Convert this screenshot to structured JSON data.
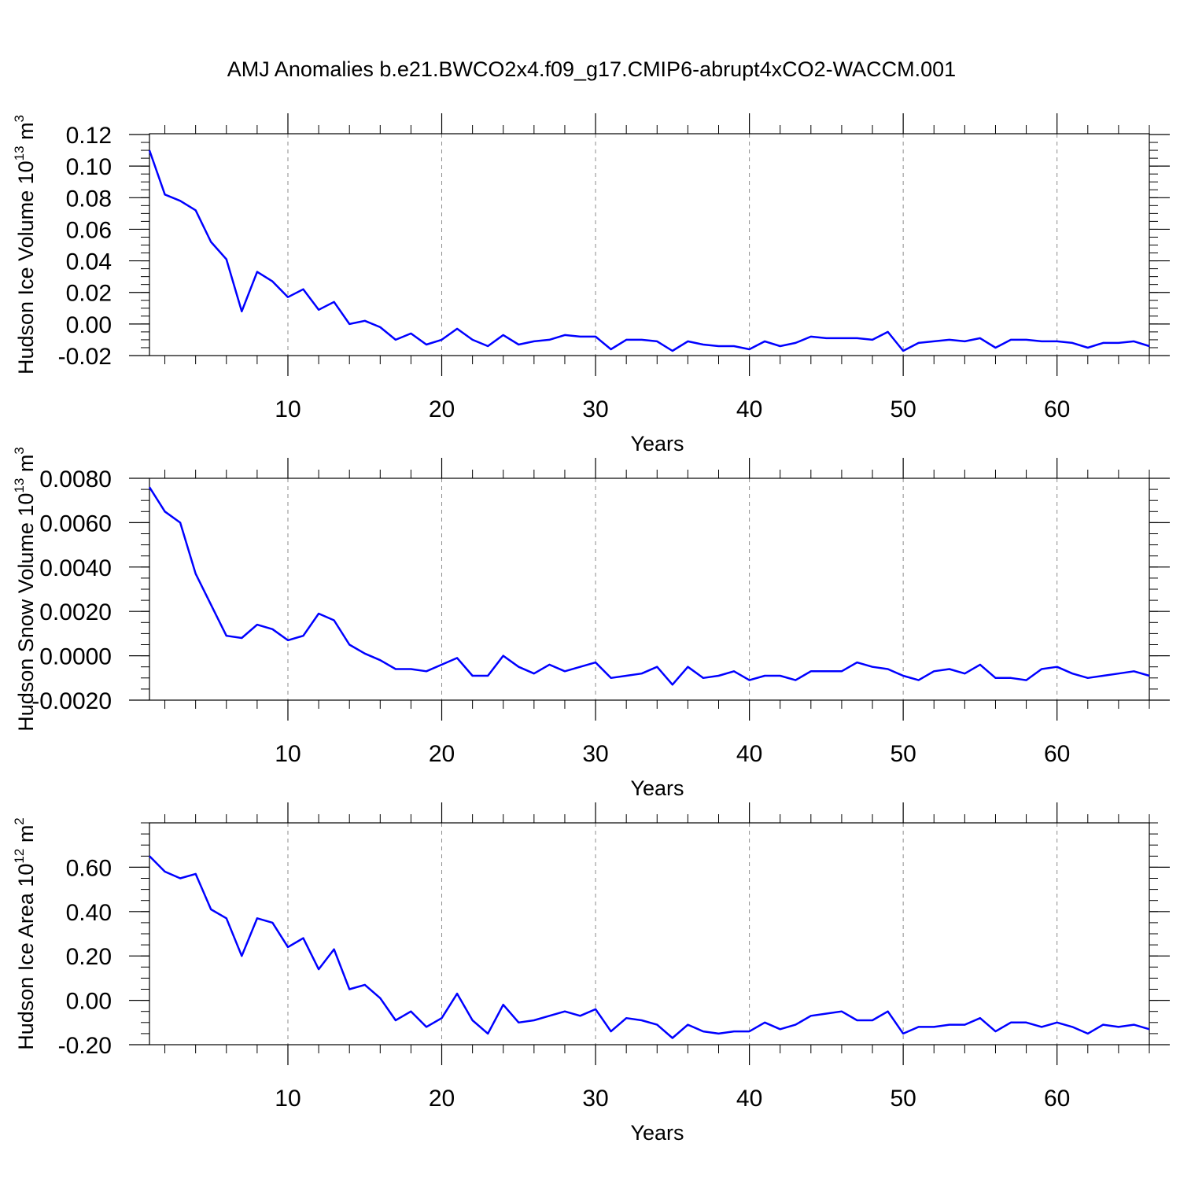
{
  "figure": {
    "title": "AMJ Anomalies b.e21.BWCO2x4.f09_g17.CMIP6-abrupt4xCO2-WACCM.001",
    "line_color": "#0000ff",
    "grid_color": "#8c8c8c"
  },
  "chart_data": [
    {
      "type": "line",
      "ylabel": "Hudson Ice Volume 10",
      "ylabel_exp": "13",
      "ylabel_unit": " m",
      "ylabel_unit_exp": "3",
      "xlabel": "Years",
      "xlim": [
        1,
        66
      ],
      "ylim": [
        -0.02,
        0.12
      ],
      "ymax_plot": 0.1205,
      "xticks": [
        10,
        20,
        30,
        40,
        50,
        60
      ],
      "xtick_labels": [
        "10",
        "20",
        "30",
        "40",
        "50",
        "60"
      ],
      "yticks": [
        -0.02,
        0.0,
        0.02,
        0.04,
        0.06,
        0.08,
        0.1,
        0.12
      ],
      "ytick_labels": [
        "-0.02",
        "0.00",
        "0.02",
        "0.04",
        "0.06",
        "0.08",
        "0.10",
        "0.12"
      ],
      "yminor_step": 0.005,
      "x": [
        1,
        2,
        3,
        4,
        5,
        6,
        7,
        8,
        9,
        10,
        11,
        12,
        13,
        14,
        15,
        16,
        17,
        18,
        19,
        20,
        21,
        22,
        23,
        24,
        25,
        26,
        27,
        28,
        29,
        30,
        31,
        32,
        33,
        34,
        35,
        36,
        37,
        38,
        39,
        40,
        41,
        42,
        43,
        44,
        45,
        46,
        47,
        48,
        49,
        50,
        51,
        52,
        53,
        54,
        55,
        56,
        57,
        58,
        59,
        60,
        61,
        62,
        63,
        64,
        65,
        66
      ],
      "values": [
        0.11,
        0.082,
        0.078,
        0.072,
        0.052,
        0.041,
        0.008,
        0.033,
        0.027,
        0.017,
        0.022,
        0.009,
        0.014,
        0.0,
        0.002,
        -0.002,
        -0.01,
        -0.006,
        -0.013,
        -0.01,
        -0.003,
        -0.01,
        -0.014,
        -0.007,
        -0.013,
        -0.011,
        -0.01,
        -0.007,
        -0.008,
        -0.008,
        -0.016,
        -0.01,
        -0.01,
        -0.011,
        -0.017,
        -0.011,
        -0.013,
        -0.014,
        -0.014,
        -0.016,
        -0.011,
        -0.014,
        -0.012,
        -0.008,
        -0.009,
        -0.009,
        -0.009,
        -0.01,
        -0.005,
        -0.017,
        -0.012,
        -0.011,
        -0.01,
        -0.011,
        -0.009,
        -0.015,
        -0.01,
        -0.01,
        -0.011,
        -0.011,
        -0.012,
        -0.015,
        -0.012,
        -0.012,
        -0.011,
        -0.014
      ]
    },
    {
      "type": "line",
      "ylabel": "Hudson Snow Volume 10",
      "ylabel_exp": "13",
      "ylabel_unit": " m",
      "ylabel_unit_exp": "3",
      "xlabel": "Years",
      "xlim": [
        1,
        66
      ],
      "ylim": [
        -0.002,
        0.008
      ],
      "ymax_plot": 0.008,
      "xticks": [
        10,
        20,
        30,
        40,
        50,
        60
      ],
      "xtick_labels": [
        "10",
        "20",
        "30",
        "40",
        "50",
        "60"
      ],
      "yticks": [
        -0.002,
        0.0,
        0.002,
        0.004,
        0.006,
        0.008
      ],
      "ytick_labels": [
        "-0.0020",
        "0.0000",
        "0.0020",
        "0.0040",
        "0.0060",
        "0.0080"
      ],
      "yminor_step": 0.0005,
      "x": [
        1,
        2,
        3,
        4,
        5,
        6,
        7,
        8,
        9,
        10,
        11,
        12,
        13,
        14,
        15,
        16,
        17,
        18,
        19,
        20,
        21,
        22,
        23,
        24,
        25,
        26,
        27,
        28,
        29,
        30,
        31,
        32,
        33,
        34,
        35,
        36,
        37,
        38,
        39,
        40,
        41,
        42,
        43,
        44,
        45,
        46,
        47,
        48,
        49,
        50,
        51,
        52,
        53,
        54,
        55,
        56,
        57,
        58,
        59,
        60,
        61,
        62,
        63,
        64,
        65,
        66
      ],
      "values": [
        0.0076,
        0.0065,
        0.006,
        0.0037,
        0.0023,
        0.0009,
        0.0008,
        0.0014,
        0.0012,
        0.0007,
        0.0009,
        0.0019,
        0.0016,
        0.0005,
        0.0001,
        -0.0002,
        -0.0006,
        -0.0006,
        -0.0007,
        -0.0004,
        -0.0001,
        -0.0009,
        -0.0009,
        0.0,
        -0.0005,
        -0.0008,
        -0.0004,
        -0.0007,
        -0.0005,
        -0.0003,
        -0.001,
        -0.0009,
        -0.0008,
        -0.0005,
        -0.0013,
        -0.0005,
        -0.001,
        -0.0009,
        -0.0007,
        -0.0011,
        -0.0009,
        -0.0009,
        -0.0011,
        -0.0007,
        -0.0007,
        -0.0007,
        -0.0003,
        -0.0005,
        -0.0006,
        -0.0009,
        -0.0011,
        -0.0007,
        -0.0006,
        -0.0008,
        -0.0004,
        -0.001,
        -0.001,
        -0.0011,
        -0.0006,
        -0.0005,
        -0.0008,
        -0.001,
        -0.0009,
        -0.0008,
        -0.0007,
        -0.0009
      ]
    },
    {
      "type": "line",
      "ylabel": "Hudson Ice Area 10",
      "ylabel_exp": "12",
      "ylabel_unit": " m",
      "ylabel_unit_exp": "2",
      "xlabel": "Years",
      "xlim": [
        1,
        66
      ],
      "ylim": [
        -0.2,
        0.8
      ],
      "ymax_plot": 0.8,
      "xticks": [
        10,
        20,
        30,
        40,
        50,
        60
      ],
      "xtick_labels": [
        "10",
        "20",
        "30",
        "40",
        "50",
        "60"
      ],
      "yticks": [
        -0.2,
        0.0,
        0.2,
        0.4,
        0.6
      ],
      "ytick_labels": [
        "-0.20",
        "0.00",
        "0.20",
        "0.40",
        "0.60"
      ],
      "yminor_step": 0.05,
      "x": [
        1,
        2,
        3,
        4,
        5,
        6,
        7,
        8,
        9,
        10,
        11,
        12,
        13,
        14,
        15,
        16,
        17,
        18,
        19,
        20,
        21,
        22,
        23,
        24,
        25,
        26,
        27,
        28,
        29,
        30,
        31,
        32,
        33,
        34,
        35,
        36,
        37,
        38,
        39,
        40,
        41,
        42,
        43,
        44,
        45,
        46,
        47,
        48,
        49,
        50,
        51,
        52,
        53,
        54,
        55,
        56,
        57,
        58,
        59,
        60,
        61,
        62,
        63,
        64,
        65,
        66
      ],
      "values": [
        0.65,
        0.58,
        0.55,
        0.57,
        0.41,
        0.37,
        0.2,
        0.37,
        0.35,
        0.24,
        0.28,
        0.14,
        0.23,
        0.05,
        0.07,
        0.01,
        -0.09,
        -0.05,
        -0.12,
        -0.08,
        0.03,
        -0.09,
        -0.15,
        -0.02,
        -0.1,
        -0.09,
        -0.07,
        -0.05,
        -0.07,
        -0.04,
        -0.14,
        -0.08,
        -0.09,
        -0.11,
        -0.17,
        -0.11,
        -0.14,
        -0.15,
        -0.14,
        -0.14,
        -0.1,
        -0.13,
        -0.11,
        -0.07,
        -0.06,
        -0.05,
        -0.09,
        -0.09,
        -0.05,
        -0.15,
        -0.12,
        -0.12,
        -0.11,
        -0.11,
        -0.08,
        -0.14,
        -0.1,
        -0.1,
        -0.12,
        -0.1,
        -0.12,
        -0.15,
        -0.11,
        -0.12,
        -0.11,
        -0.13
      ]
    }
  ]
}
